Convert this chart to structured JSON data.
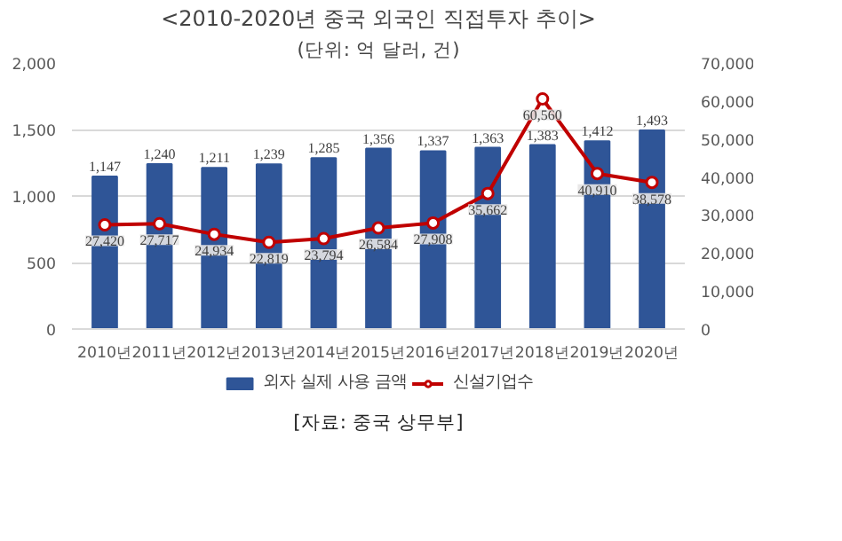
{
  "chart_data": {
    "type": "bar",
    "title": "<2010-2020년 중국 외국인 직접투자 추이>",
    "subtitle": "(단위: 억 달러, 건)",
    "annotations": [
      "[자료: 중국 상무부]"
    ],
    "categories": [
      "2010년",
      "2011년",
      "2012년",
      "2013년",
      "2014년",
      "2015년",
      "2016년",
      "2017년",
      "2018년",
      "2019년",
      "2020년"
    ],
    "series": [
      {
        "name": "외자 실제 사용 금액",
        "color": "#2f5597",
        "values": [
          1147,
          1240,
          1211,
          1239,
          1285,
          1356,
          1337,
          1363,
          1383,
          1412,
          1493
        ],
        "value_labels": [
          "1,147",
          "1,240",
          "1,211",
          "1,239",
          "1,285",
          "1,356",
          "1,337",
          "1,363",
          "1,383",
          "1,412",
          "1,493"
        ]
      },
      {
        "name": "신설기업수",
        "type": "line",
        "axis": "y2",
        "color": "#c00000",
        "marker": "circle",
        "values": [
          27420,
          27717,
          24934,
          22819,
          23794,
          26584,
          27908,
          35662,
          60560,
          40910,
          38578
        ],
        "value_labels": [
          "27,420",
          "27,717",
          "24,934",
          "22,819",
          "23,794",
          "26,584",
          "27,908",
          "35,662",
          "60,560",
          "40,910",
          "38,578"
        ]
      }
    ],
    "ylim": [
      0,
      2000
    ],
    "yticks": [
      0,
      {
        "value": 500,
        "label": "500"
      },
      {
        "value": 1000,
        "label": "1,000"
      },
      {
        "value": 1500,
        "label": "1,500"
      },
      {
        "value": 2000,
        "label": "2,000"
      }
    ],
    "y2lim": [
      0,
      70000
    ],
    "y2ticks": [
      0,
      {
        "value": 10000,
        "label": "10,000"
      },
      {
        "value": 20000,
        "label": "20,000"
      },
      {
        "value": 30000,
        "label": "30,000"
      },
      {
        "value": 40000,
        "label": "40,000"
      },
      {
        "value": 50000,
        "label": "50,000"
      },
      {
        "value": 60000,
        "label": "60,000"
      },
      {
        "value": 70000,
        "label": "70,000"
      }
    ],
    "grid": "y",
    "legend": "bottom"
  }
}
